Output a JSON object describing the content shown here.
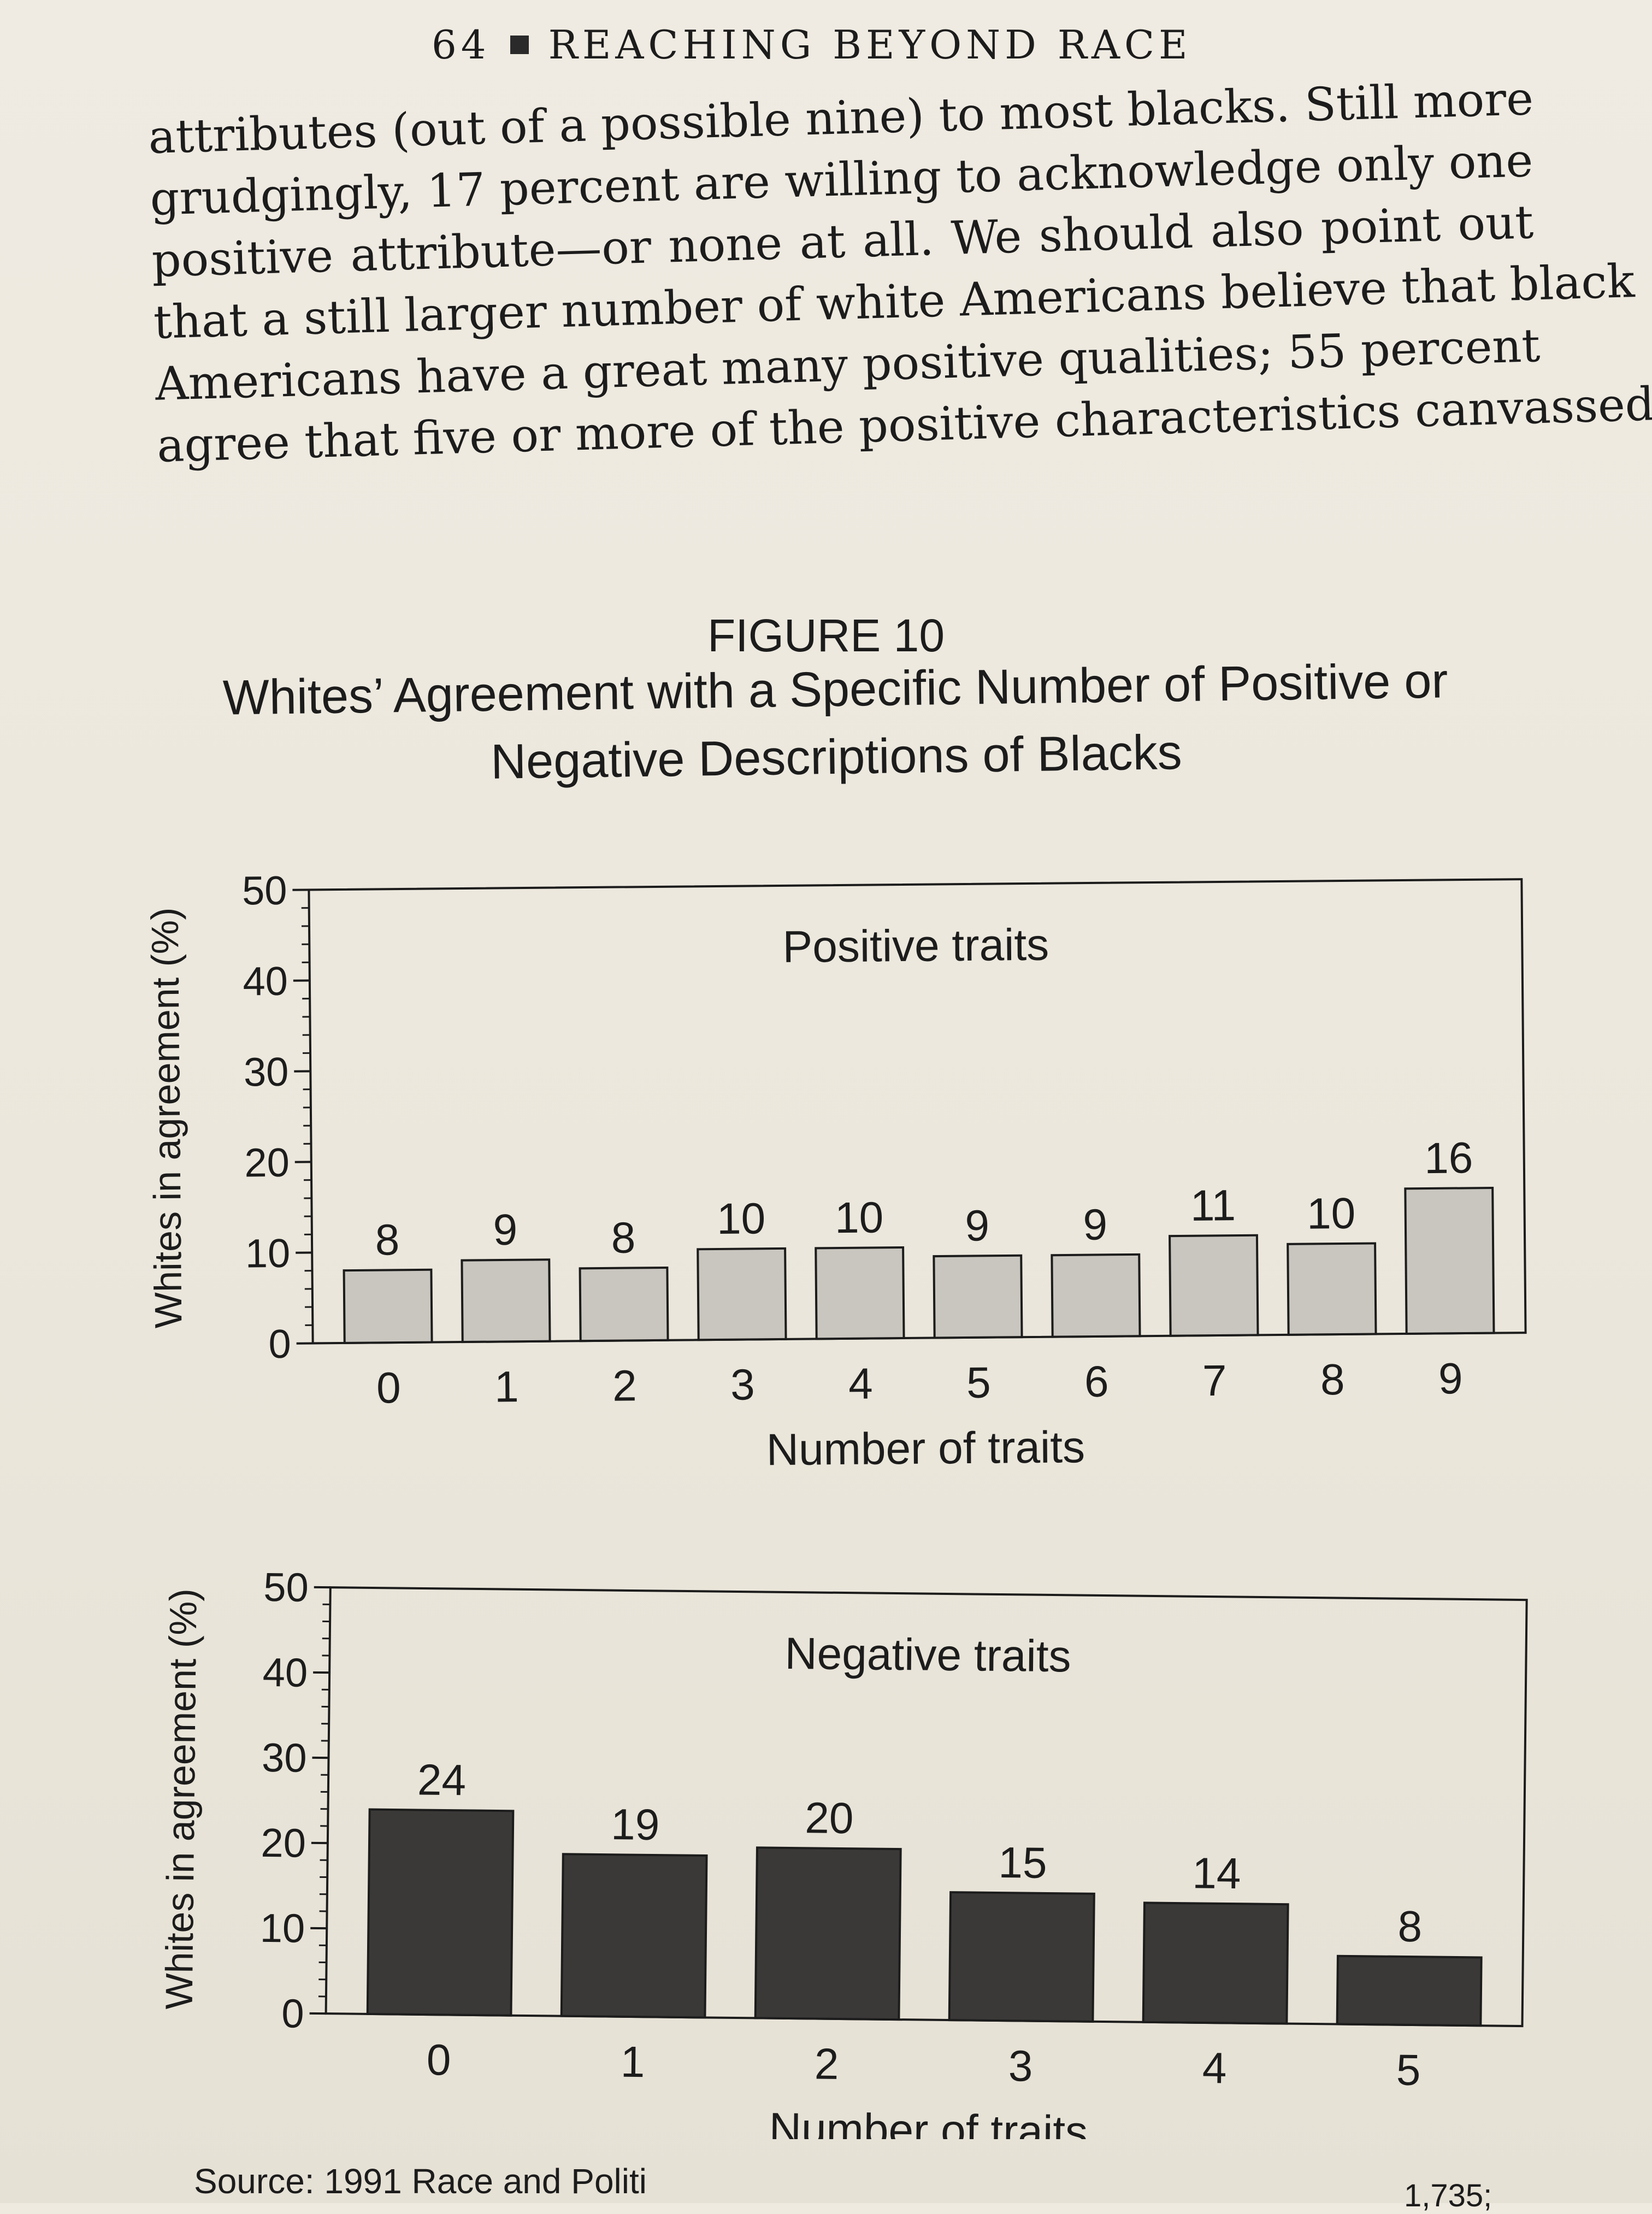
{
  "running_head": {
    "page_number": "64",
    "title": "REACHING BEYOND RACE"
  },
  "body_text": {
    "lines": [
      "attributes (out of a possible nine) to most blacks. Still more",
      "grudgingly, 17 percent are willing to acknowledge only one",
      "positive attribute—or none at all. We should also point out",
      "that a still larger number of white Americans believe that black",
      "Americans have a great many positive qualities; 55 percent",
      "agree that five or more of the positive characteristics canvassed"
    ]
  },
  "figure": {
    "label": "FIGURE 10",
    "title_line1": "Whites’ Agreement with a Specific Number of Positive or",
    "title_line2": "Negative Descriptions of Blacks",
    "source": "Source: 1991 Race and Politi",
    "source_tail": "1,735;"
  },
  "chart_data": [
    {
      "type": "bar",
      "title": "Positive traits",
      "xlabel": "Number of traits",
      "ylabel": "Whites in agreement (%)",
      "categories": [
        "0",
        "1",
        "2",
        "3",
        "4",
        "5",
        "6",
        "7",
        "8",
        "9"
      ],
      "values": [
        8,
        9,
        8,
        10,
        10,
        9,
        9,
        11,
        10,
        16
      ],
      "ylim": [
        0,
        50
      ],
      "yticks": [
        0,
        10,
        20,
        30,
        40,
        50
      ],
      "bar_color": "#c9c6bf",
      "grid": false
    },
    {
      "type": "bar",
      "title": "Negative traits",
      "xlabel": "Number of traits",
      "ylabel": "Whites in agreement (%)",
      "categories": [
        "0",
        "1",
        "2",
        "3",
        "4",
        "5"
      ],
      "values": [
        24,
        19,
        20,
        15,
        14,
        8
      ],
      "ylim": [
        0,
        50
      ],
      "yticks": [
        0,
        10,
        20,
        30,
        40,
        50
      ],
      "bar_color": "#3a3938",
      "grid": false
    }
  ]
}
